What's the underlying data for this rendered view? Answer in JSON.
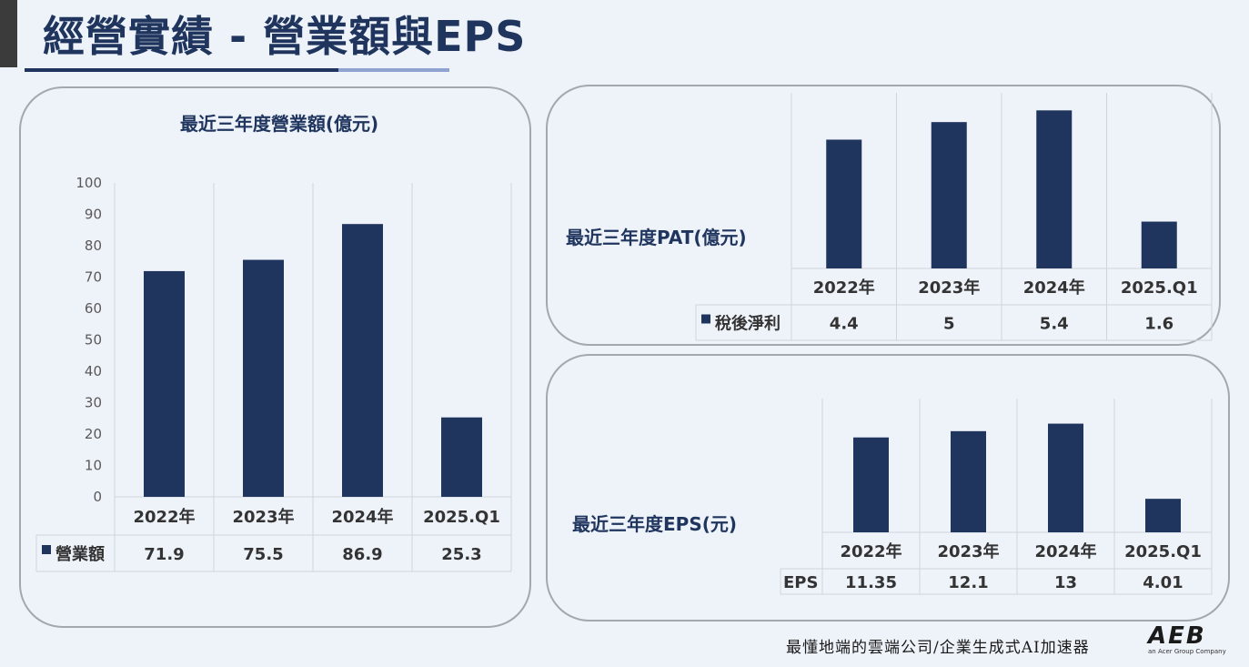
{
  "slide": {
    "title": "經營實績 - 營業額與EPS",
    "footer_slogan": "最懂地端的雲端公司/企業生成式AI加速器",
    "logo": {
      "mark": "AEB",
      "tagline": "an Acer Group Company"
    }
  },
  "colors": {
    "bar": "#1f355e",
    "title": "#1f355e",
    "border": "#a3a7ae"
  },
  "chart_data": [
    {
      "id": "revenue",
      "type": "bar",
      "title": "最近三年度營業額(億元)",
      "categories": [
        "2022年",
        "2023年",
        "2024年",
        "2025.Q1"
      ],
      "series": [
        {
          "name": "營業額",
          "values": [
            71.9,
            75.5,
            86.9,
            25.3
          ]
        }
      ],
      "value_labels": [
        "71.9",
        "75.5",
        "86.9",
        "25.3"
      ],
      "ylim": [
        0,
        100
      ],
      "yticks": [
        0,
        10,
        20,
        30,
        40,
        50,
        60,
        70,
        80,
        90,
        100
      ],
      "grid": false,
      "legend": "data-table"
    },
    {
      "id": "pat",
      "type": "bar",
      "title": "最近三年度PAT(億元)",
      "categories": [
        "2022年",
        "2023年",
        "2024年",
        "2025.Q1"
      ],
      "series": [
        {
          "name": "稅後淨利",
          "values": [
            4.4,
            5,
            5.4,
            1.6
          ]
        }
      ],
      "value_labels": [
        "4.4",
        "5",
        "5.4",
        "1.6"
      ],
      "ylim": [
        0,
        6
      ],
      "grid": false,
      "legend": "data-table"
    },
    {
      "id": "eps",
      "type": "bar",
      "title": "最近三年度EPS(元)",
      "categories": [
        "2022年",
        "2023年",
        "2024年",
        "2025.Q1"
      ],
      "series": [
        {
          "name": "EPS",
          "values": [
            11.35,
            12.1,
            13,
            4.01
          ]
        }
      ],
      "value_labels": [
        "11.35",
        "12.1",
        "13",
        "4.01"
      ],
      "ylim": [
        0,
        16
      ],
      "grid": false,
      "legend": "data-table"
    }
  ]
}
